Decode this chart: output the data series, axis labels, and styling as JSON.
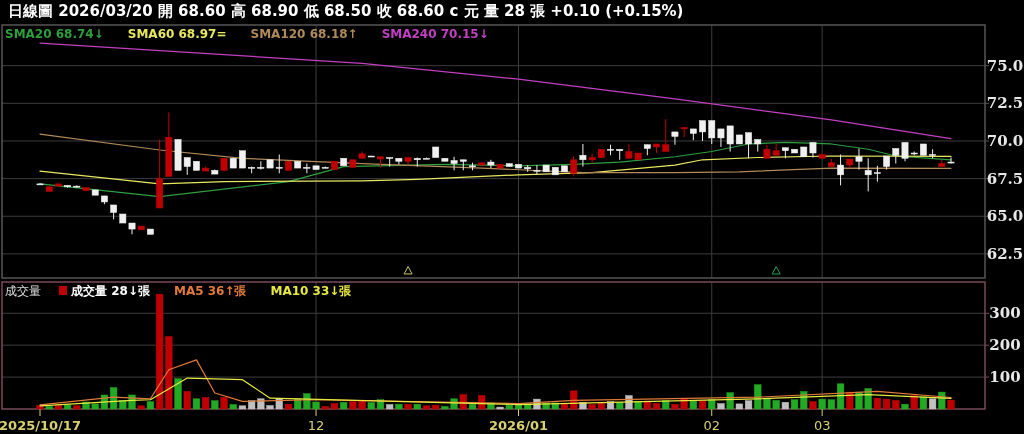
{
  "chart_data": [
    {
      "type": "candlestick",
      "title": "日線圖 2026/03/20 開 68.60 高 68.90 低 68.50 收 68.60 c 元 量 28 張 +0.10 (+0.15%)",
      "categories": [
        "2025/10/17",
        null,
        null,
        null,
        null,
        null,
        null,
        null,
        null,
        null,
        null,
        null,
        null,
        null,
        null,
        null,
        null,
        null,
        null,
        null,
        null,
        null,
        null,
        null,
        null,
        null,
        null,
        null,
        null,
        null,
        "12",
        null,
        null,
        null,
        null,
        null,
        null,
        null,
        null,
        null,
        null,
        null,
        null,
        null,
        null,
        null,
        null,
        null,
        null,
        null,
        null,
        null,
        "2026/01",
        null,
        null,
        null,
        null,
        null,
        null,
        null,
        null,
        null,
        null,
        null,
        null,
        null,
        null,
        null,
        null,
        null,
        null,
        null,
        null,
        "02",
        null,
        null,
        null,
        null,
        null,
        null,
        null,
        null,
        null,
        null,
        null,
        "03",
        null,
        null,
        null,
        null,
        null,
        null,
        null,
        null,
        null,
        null,
        null,
        null,
        null,
        null
      ],
      "ohlc": [
        [
          67.15,
          67.2,
          67.1,
          67.1
        ],
        [
          66.65,
          67.05,
          66.65,
          66.95
        ],
        [
          67.0,
          67.15,
          67.0,
          67.15
        ],
        [
          67.05,
          67.05,
          66.9,
          66.95
        ],
        [
          67.0,
          67.05,
          66.9,
          67.0
        ],
        [
          66.7,
          66.9,
          66.7,
          66.9
        ],
        [
          66.75,
          66.75,
          66.4,
          66.4
        ],
        [
          66.35,
          66.35,
          65.8,
          65.95
        ],
        [
          65.75,
          65.75,
          64.8,
          65.25
        ],
        [
          65.15,
          65.15,
          64.55,
          64.55
        ],
        [
          64.55,
          64.55,
          63.8,
          64.15
        ],
        [
          64.1,
          64.35,
          64.1,
          64.35
        ],
        [
          64.15,
          64.15,
          63.8,
          63.8
        ],
        [
          65.55,
          70.1,
          65.55,
          67.5
        ],
        [
          67.65,
          71.9,
          67.65,
          70.25
        ],
        [
          70.1,
          70.1,
          68.05,
          68.05
        ],
        [
          68.9,
          68.9,
          67.75,
          68.3
        ],
        [
          68.65,
          68.65,
          68.05,
          68.05
        ],
        [
          68.0,
          68.3,
          68.0,
          68.2
        ],
        [
          68.05,
          68.1,
          67.8,
          67.8
        ],
        [
          68.05,
          68.85,
          68.05,
          68.85
        ],
        [
          68.85,
          68.85,
          68.2,
          68.2
        ],
        [
          69.35,
          69.35,
          68.2,
          68.2
        ],
        [
          68.25,
          68.3,
          67.85,
          68.25
        ],
        [
          68.25,
          68.65,
          68.1,
          68.25
        ],
        [
          68.75,
          68.75,
          68.2,
          68.2
        ],
        [
          68.25,
          69.1,
          67.85,
          68.25
        ],
        [
          68.05,
          68.65,
          68.05,
          68.65
        ],
        [
          68.65,
          68.65,
          68.2,
          68.2
        ],
        [
          68.25,
          68.5,
          67.85,
          68.25
        ],
        [
          68.35,
          68.35,
          68.1,
          68.1
        ],
        [
          68.25,
          68.3,
          68.2,
          68.25
        ],
        [
          68.1,
          68.65,
          68.1,
          68.65
        ],
        [
          68.85,
          68.85,
          68.35,
          68.35
        ],
        [
          68.25,
          68.75,
          68.25,
          68.75
        ],
        [
          68.85,
          69.3,
          68.85,
          69.15
        ],
        [
          69.0,
          69.0,
          69.0,
          69.0
        ],
        [
          68.8,
          68.95,
          68.25,
          68.95
        ],
        [
          68.9,
          68.9,
          68.3,
          68.9
        ],
        [
          68.85,
          68.85,
          68.45,
          68.65
        ],
        [
          68.65,
          68.9,
          68.4,
          68.9
        ],
        [
          68.85,
          68.9,
          68.3,
          68.75
        ],
        [
          68.85,
          68.9,
          68.85,
          68.85
        ],
        [
          69.6,
          69.6,
          68.9,
          68.9
        ],
        [
          68.85,
          68.85,
          68.65,
          68.65
        ],
        [
          68.7,
          68.95,
          68.05,
          68.5
        ],
        [
          68.75,
          68.75,
          68.05,
          68.65
        ],
        [
          68.35,
          68.55,
          68.05,
          68.35
        ],
        [
          68.4,
          68.55,
          68.4,
          68.55
        ],
        [
          68.6,
          68.75,
          68.2,
          68.4
        ],
        [
          68.2,
          68.45,
          68.2,
          68.45
        ],
        [
          68.5,
          68.5,
          68.3,
          68.3
        ],
        [
          68.45,
          68.45,
          68.2,
          68.2
        ],
        [
          68.25,
          68.4,
          67.95,
          68.15
        ],
        [
          68.05,
          68.4,
          67.8,
          68.05
        ],
        [
          68.4,
          68.4,
          67.95,
          67.95
        ],
        [
          68.25,
          68.25,
          67.75,
          67.75
        ],
        [
          68.35,
          68.35,
          67.95,
          67.95
        ],
        [
          67.85,
          69.0,
          67.65,
          68.75
        ],
        [
          69.05,
          69.8,
          68.3,
          68.75
        ],
        [
          68.75,
          69.15,
          68.5,
          68.9
        ],
        [
          68.9,
          69.45,
          68.9,
          69.45
        ],
        [
          69.45,
          69.75,
          69.05,
          69.45
        ],
        [
          69.45,
          69.45,
          68.75,
          69.35
        ],
        [
          68.85,
          69.8,
          68.85,
          69.3
        ],
        [
          68.75,
          69.2,
          68.75,
          69.2
        ],
        [
          69.75,
          69.75,
          69.05,
          69.5
        ],
        [
          69.6,
          69.8,
          69.2,
          69.8
        ],
        [
          69.3,
          71.45,
          69.3,
          69.75
        ],
        [
          70.6,
          70.6,
          69.75,
          70.3
        ],
        [
          70.8,
          70.9,
          70.25,
          70.9
        ],
        [
          70.8,
          70.8,
          70.05,
          70.5
        ],
        [
          71.35,
          71.35,
          70.0,
          70.6
        ],
        [
          71.35,
          71.35,
          69.8,
          70.2
        ],
        [
          70.8,
          70.8,
          69.6,
          70.2
        ],
        [
          71.0,
          71.0,
          69.3,
          69.8
        ],
        [
          70.4,
          70.4,
          69.8,
          69.8
        ],
        [
          70.55,
          70.55,
          68.85,
          69.8
        ],
        [
          70.1,
          70.1,
          69.3,
          69.8
        ],
        [
          68.85,
          69.75,
          68.85,
          69.45
        ],
        [
          69.05,
          69.8,
          69.05,
          69.35
        ],
        [
          69.55,
          69.55,
          68.85,
          69.35
        ],
        [
          69.45,
          69.45,
          69.2,
          69.2
        ],
        [
          69.6,
          69.6,
          68.95,
          68.95
        ],
        [
          69.9,
          69.9,
          68.9,
          69.2
        ],
        [
          68.85,
          69.1,
          68.85,
          69.1
        ],
        [
          68.3,
          68.8,
          68.3,
          68.55
        ],
        [
          68.4,
          69.1,
          67.05,
          67.75
        ],
        [
          68.4,
          68.8,
          68.2,
          68.8
        ],
        [
          68.95,
          69.5,
          68.1,
          68.65
        ],
        [
          68.05,
          68.85,
          66.65,
          67.75
        ],
        [
          67.9,
          68.35,
          67.3,
          67.85
        ],
        [
          69.0,
          69.0,
          68.1,
          68.3
        ],
        [
          69.5,
          69.5,
          68.5,
          69.05
        ],
        [
          69.9,
          69.9,
          68.65,
          68.85
        ],
        [
          69.2,
          69.3,
          69.05,
          69.2
        ],
        [
          69.8,
          69.8,
          69.05,
          69.05
        ],
        [
          69.1,
          69.45,
          68.85,
          69.1
        ],
        [
          68.3,
          68.75,
          68.3,
          68.5
        ],
        [
          68.6,
          68.9,
          68.5,
          68.6
        ]
      ],
      "colors": [
        "#f0f0f0",
        "#c00000",
        "#c00000",
        "#f0f0f0",
        "#f0f0f0",
        "#c00000",
        "#f0f0f0",
        "#f0f0f0",
        "#f0f0f0",
        "#f0f0f0",
        "#f0f0f0",
        "#c00000",
        "#f0f0f0",
        "#c00000",
        "#c00000",
        "#f0f0f0",
        "#f0f0f0",
        "#f0f0f0",
        "#c00000",
        "#f0f0f0",
        "#c00000",
        "#f0f0f0",
        "#f0f0f0",
        "#f0f0f0",
        "#f0f0f0",
        "#f0f0f0",
        "#f0f0f0",
        "#c00000",
        "#f0f0f0",
        "#f0f0f0",
        "#f0f0f0",
        "#f0f0f0",
        "#c00000",
        "#f0f0f0",
        "#c00000",
        "#c00000",
        "#f0f0f0",
        "#c00000",
        "#f0f0f0",
        "#f0f0f0",
        "#c00000",
        "#f0f0f0",
        "#f0f0f0",
        "#f0f0f0",
        "#f0f0f0",
        "#f0f0f0",
        "#f0f0f0",
        "#f0f0f0",
        "#c00000",
        "#f0f0f0",
        "#c00000",
        "#f0f0f0",
        "#f0f0f0",
        "#f0f0f0",
        "#f0f0f0",
        "#f0f0f0",
        "#f0f0f0",
        "#f0f0f0",
        "#c00000",
        "#f0f0f0",
        "#c00000",
        "#c00000",
        "#f0f0f0",
        "#f0f0f0",
        "#c00000",
        "#c00000",
        "#f0f0f0",
        "#c00000",
        "#c00000",
        "#f0f0f0",
        "#c00000",
        "#f0f0f0",
        "#f0f0f0",
        "#f0f0f0",
        "#f0f0f0",
        "#f0f0f0",
        "#f0f0f0",
        "#f0f0f0",
        "#f0f0f0",
        "#c00000",
        "#c00000",
        "#f0f0f0",
        "#f0f0f0",
        "#f0f0f0",
        "#f0f0f0",
        "#c00000",
        "#c00000",
        "#f0f0f0",
        "#c00000",
        "#f0f0f0",
        "#f0f0f0",
        "#f0f0f0",
        "#f0f0f0",
        "#f0f0f0",
        "#f0f0f0",
        "#f0f0f0",
        "#f0f0f0",
        "#f0f0f0",
        "#c00000",
        "#f0f0f0"
      ],
      "series": [
        {
          "name": "SMA20 68.74↓",
          "type": "line",
          "color": "#2e9e3e",
          "values": [
            67.15,
            null,
            null,
            null,
            null,
            null,
            null,
            null,
            null,
            null,
            null,
            null,
            null,
            66.3,
            null,
            null,
            null,
            null,
            null,
            null,
            null,
            null,
            null,
            null,
            null,
            null,
            null,
            67.3,
            null,
            null,
            null,
            null,
            null,
            68.3,
            null,
            null,
            null,
            null,
            null,
            null,
            null,
            null,
            null,
            null,
            68.45,
            null,
            null,
            null,
            null,
            null,
            null,
            null,
            68.35,
            null,
            null,
            null,
            null,
            null,
            68.45,
            null,
            null,
            null,
            null,
            68.6,
            null,
            null,
            null,
            null,
            null,
            68.95,
            null,
            null,
            null,
            69.3,
            null,
            null,
            null,
            69.8,
            null,
            null,
            null,
            69.9,
            null,
            null,
            null,
            null,
            69.8,
            null,
            null,
            null,
            69.45,
            null,
            null,
            69.0,
            null,
            null,
            null,
            null,
            null,
            68.74
          ]
        },
        {
          "name": "SMA60 68.97=",
          "type": "line",
          "color": "#e8e860",
          "values": [
            68.0,
            null,
            null,
            null,
            null,
            null,
            null,
            null,
            null,
            null,
            null,
            null,
            null,
            67.15,
            null,
            null,
            null,
            null,
            null,
            null,
            67.3,
            null,
            null,
            null,
            null,
            null,
            null,
            null,
            null,
            null,
            null,
            null,
            null,
            null,
            null,
            67.35,
            null,
            null,
            null,
            null,
            null,
            67.45,
            null,
            null,
            null,
            null,
            null,
            null,
            null,
            null,
            null,
            null,
            67.75,
            null,
            null,
            null,
            null,
            null,
            null,
            null,
            67.9,
            null,
            null,
            null,
            null,
            null,
            null,
            null,
            null,
            68.4,
            null,
            null,
            68.75,
            null,
            null,
            null,
            null,
            null,
            68.9,
            null,
            null,
            null,
            null,
            null,
            null,
            null,
            69.0,
            null,
            null,
            null,
            null,
            null,
            null,
            null,
            null,
            null,
            null,
            null,
            null,
            68.97
          ]
        },
        {
          "name": "SMA120 68.18↑",
          "type": "line",
          "color": "#b08a5a",
          "values": [
            70.45,
            null,
            null,
            null,
            null,
            null,
            null,
            null,
            null,
            null,
            null,
            null,
            null,
            69.4,
            null,
            null,
            null,
            null,
            null,
            null,
            null,
            null,
            68.85,
            null,
            null,
            null,
            null,
            null,
            null,
            null,
            null,
            null,
            null,
            null,
            null,
            68.5,
            null,
            null,
            null,
            null,
            null,
            null,
            null,
            null,
            null,
            null,
            null,
            null,
            68.2,
            null,
            null,
            null,
            null,
            null,
            null,
            null,
            null,
            null,
            null,
            67.9,
            null,
            null,
            null,
            null,
            null,
            null,
            null,
            null,
            null,
            67.9,
            null,
            null,
            null,
            null,
            null,
            null,
            67.95,
            null,
            null,
            null,
            null,
            null,
            null,
            null,
            null,
            null,
            68.2,
            null,
            null,
            null,
            null,
            null,
            null,
            null,
            null,
            null,
            null,
            null,
            null,
            68.18
          ]
        },
        {
          "name": "SMA240 70.15↓",
          "type": "line",
          "color": "#c040c0",
          "values": [
            76.5,
            null,
            null,
            null,
            null,
            null,
            null,
            null,
            null,
            null,
            null,
            null,
            null,
            null,
            null,
            null,
            null,
            null,
            null,
            null,
            null,
            null,
            null,
            null,
            null,
            null,
            null,
            null,
            null,
            null,
            null,
            null,
            null,
            null,
            null,
            75.15,
            null,
            null,
            null,
            null,
            null,
            null,
            null,
            null,
            null,
            null,
            null,
            null,
            null,
            null,
            null,
            null,
            74.1,
            null,
            null,
            null,
            null,
            null,
            null,
            null,
            null,
            null,
            null,
            null,
            null,
            null,
            null,
            null,
            null,
            72.8,
            null,
            null,
            null,
            null,
            null,
            null,
            null,
            null,
            null,
            null,
            null,
            null,
            null,
            null,
            null,
            null,
            71.4,
            null,
            null,
            null,
            null,
            null,
            null,
            null,
            null,
            null,
            null,
            null,
            null,
            70.15
          ]
        },
        {
          "type": "scatter",
          "marker": "triangle",
          "values": [
            null,
            null,
            null,
            null,
            null,
            null,
            null,
            null,
            null,
            null,
            null,
            null,
            null,
            null,
            null,
            null,
            null,
            null,
            null,
            null,
            null,
            null,
            null,
            null,
            null,
            null,
            null,
            null,
            null,
            null,
            null,
            null,
            null,
            null,
            null,
            null,
            null,
            null,
            null,
            null,
            61.4,
            null,
            null,
            null,
            null,
            null,
            null,
            null,
            null,
            null,
            null,
            null,
            null,
            null,
            null,
            null,
            null,
            null,
            null,
            null,
            null,
            null,
            null,
            null,
            null,
            null,
            null,
            null,
            null,
            null,
            null,
            null,
            null,
            null,
            null,
            null,
            null,
            null,
            null,
            null,
            61.4,
            null,
            null,
            null,
            null,
            null,
            null,
            null,
            null,
            null,
            null,
            null,
            null,
            null,
            null,
            null,
            null,
            null,
            null,
            null
          ],
          "colors": [
            null,
            null,
            null,
            null,
            null,
            null,
            null,
            null,
            null,
            null,
            null,
            null,
            null,
            null,
            null,
            null,
            null,
            null,
            null,
            null,
            null,
            null,
            null,
            null,
            null,
            null,
            null,
            null,
            null,
            null,
            null,
            null,
            null,
            null,
            null,
            null,
            null,
            null,
            null,
            null,
            "#c8c86e",
            null,
            null,
            null,
            null,
            null,
            null,
            null,
            null,
            null,
            null,
            null,
            null,
            null,
            null,
            null,
            null,
            null,
            null,
            null,
            null,
            null,
            null,
            null,
            null,
            null,
            null,
            null,
            null,
            null,
            null,
            null,
            null,
            null,
            null,
            null,
            null,
            null,
            null,
            null,
            "#2e9e4e",
            null,
            null,
            null,
            null,
            null,
            null,
            null,
            null,
            null,
            null,
            null,
            null,
            null,
            null,
            null,
            null,
            null,
            null,
            null
          ]
        }
      ],
      "ylim": [
        60.9,
        77.7
      ],
      "yticks": [
        {
          "value": 62.5,
          "label": "62.5"
        },
        {
          "value": 65,
          "label": "65.0"
        },
        {
          "value": 67.5,
          "label": "67.5"
        },
        {
          "value": 70,
          "label": "70.0"
        },
        {
          "value": 72.5,
          "label": "72.5"
        },
        {
          "value": 75,
          "label": "75.0"
        }
      ],
      "grid": true,
      "legend": "top left",
      "tick_labels": "y"
    },
    {
      "type": "bar",
      "title": "成交量",
      "categories": [
        "2025/10/17",
        null,
        null,
        null,
        null,
        null,
        null,
        null,
        null,
        null,
        null,
        null,
        null,
        null,
        null,
        null,
        null,
        null,
        null,
        null,
        null,
        null,
        null,
        null,
        null,
        null,
        null,
        null,
        null,
        null,
        "12",
        null,
        null,
        null,
        null,
        null,
        null,
        null,
        null,
        null,
        null,
        null,
        null,
        null,
        null,
        null,
        null,
        null,
        null,
        null,
        null,
        null,
        "2026/01",
        null,
        null,
        null,
        null,
        null,
        null,
        null,
        null,
        null,
        null,
        null,
        null,
        null,
        null,
        null,
        null,
        null,
        null,
        null,
        null,
        "02",
        null,
        null,
        null,
        null,
        null,
        null,
        null,
        null,
        null,
        null,
        null,
        "03",
        null,
        null,
        null,
        null,
        null,
        null,
        null,
        null,
        null,
        null,
        null,
        null,
        null,
        null
      ],
      "series": [
        {
          "name": "成交量 28↓張",
          "type": "bar",
          "values": [
            11,
            8,
            12,
            13,
            10,
            22,
            16,
            44,
            67,
            27,
            44,
            10,
            23,
            360,
            227,
            95,
            55,
            32,
            36,
            26,
            36,
            14,
            10,
            26,
            32,
            11,
            32,
            15,
            32,
            48,
            22,
            8,
            17,
            21,
            23,
            27,
            20,
            29,
            14,
            15,
            15,
            15,
            10,
            12,
            8,
            32,
            45,
            15,
            42,
            19,
            6,
            12,
            16,
            16,
            31,
            19,
            19,
            17,
            57,
            21,
            14,
            21,
            23,
            21,
            42,
            24,
            25,
            17,
            27,
            15,
            33,
            27,
            25,
            30,
            17,
            51,
            16,
            26,
            76,
            32,
            27,
            21,
            29,
            55,
            23,
            31,
            29,
            79,
            53,
            53,
            64,
            34,
            31,
            27,
            15,
            42,
            38,
            32,
            53,
            28
          ],
          "colors": [
            "#c00000",
            "#22aa22",
            "#c00000",
            "#22aa22",
            "#c00000",
            "#22aa22",
            "#22aa22",
            "#22aa22",
            "#22aa22",
            "#22aa22",
            "#22aa22",
            "#c00000",
            "#22aa22",
            "#c00000",
            "#c00000",
            "#22aa22",
            "#c00000",
            "#22aa22",
            "#c00000",
            "#22aa22",
            "#c00000",
            "#22aa22",
            "#c0c0c0",
            "#c0c0c0",
            "#c0c0c0",
            "#c0c0c0",
            "#c0c0c0",
            "#c00000",
            "#22aa22",
            "#22aa22",
            "#22aa22",
            "#c00000",
            "#c00000",
            "#22aa22",
            "#c00000",
            "#c00000",
            "#22aa22",
            "#22aa22",
            "#c0c0c0",
            "#22aa22",
            "#c00000",
            "#22aa22",
            "#c00000",
            "#c00000",
            "#22aa22",
            "#22aa22",
            "#c00000",
            "#22aa22",
            "#c00000",
            "#22aa22",
            "#c0c0c0",
            "#22aa22",
            "#22aa22",
            "#22aa22",
            "#c0c0c0",
            "#22aa22",
            "#22aa22",
            "#c00000",
            "#c00000",
            "#c0c0c0",
            "#c00000",
            "#c00000",
            "#c0c0c0",
            "#22aa22",
            "#c0c0c0",
            "#22aa22",
            "#c00000",
            "#c00000",
            "#22aa22",
            "#c00000",
            "#c00000",
            "#22aa22",
            "#c00000",
            "#22aa22",
            "#c0c0c0",
            "#22aa22",
            "#c0c0c0",
            "#c0c0c0",
            "#22aa22",
            "#22aa22",
            "#22aa22",
            "#c0c0c0",
            "#22aa22",
            "#22aa22",
            "#c00000",
            "#22aa22",
            "#22aa22",
            "#22aa22",
            "#c00000",
            "#22aa22",
            "#22aa22",
            "#c00000",
            "#c00000",
            "#c00000",
            "#22aa22",
            "#c00000",
            "#22aa22",
            "#c0c0c0",
            "#22aa22",
            "#c00000"
          ]
        },
        {
          "name": "MA5 36↑張",
          "type": "line",
          "color": "#e07a3a",
          "values": [
            13,
            null,
            null,
            null,
            null,
            null,
            null,
            null,
            37,
            null,
            null,
            null,
            32,
            null,
            123,
            null,
            null,
            154,
            null,
            50,
            null,
            null,
            24,
            null,
            null,
            null,
            null,
            null,
            null,
            null,
            29,
            null,
            null,
            null,
            null,
            null,
            null,
            null,
            null,
            null,
            null,
            null,
            null,
            null,
            null,
            null,
            null,
            null,
            null,
            null,
            null,
            null,
            17,
            null,
            null,
            null,
            null,
            null,
            27,
            null,
            null,
            null,
            null,
            null,
            null,
            null,
            null,
            null,
            null,
            null,
            null,
            null,
            null,
            null,
            null,
            null,
            null,
            null,
            37,
            null,
            null,
            null,
            null,
            null,
            null,
            null,
            null,
            null,
            null,
            null,
            null,
            55,
            null,
            null,
            null,
            null,
            null,
            null,
            null,
            36
          ]
        },
        {
          "name": "MA10 33↓張",
          "type": "line",
          "color": "#e8e840",
          "values": [
            10,
            null,
            null,
            null,
            null,
            null,
            null,
            null,
            null,
            null,
            27,
            null,
            29,
            null,
            null,
            null,
            97,
            null,
            null,
            null,
            null,
            null,
            92,
            null,
            null,
            34,
            null,
            null,
            null,
            null,
            null,
            null,
            null,
            null,
            null,
            null,
            null,
            null,
            null,
            null,
            null,
            null,
            null,
            null,
            null,
            null,
            null,
            null,
            null,
            null,
            null,
            null,
            14,
            null,
            null,
            null,
            null,
            null,
            null,
            null,
            null,
            null,
            null,
            null,
            null,
            null,
            null,
            null,
            null,
            null,
            null,
            null,
            null,
            null,
            null,
            null,
            null,
            null,
            32,
            null,
            null,
            null,
            null,
            null,
            null,
            null,
            null,
            null,
            null,
            null,
            45,
            null,
            null,
            null,
            null,
            null,
            null,
            null,
            null,
            33
          ]
        }
      ],
      "ylim": [
        0,
        398
      ],
      "yticks": [
        100,
        200,
        300
      ],
      "grid": true,
      "legend": "top left"
    }
  ]
}
